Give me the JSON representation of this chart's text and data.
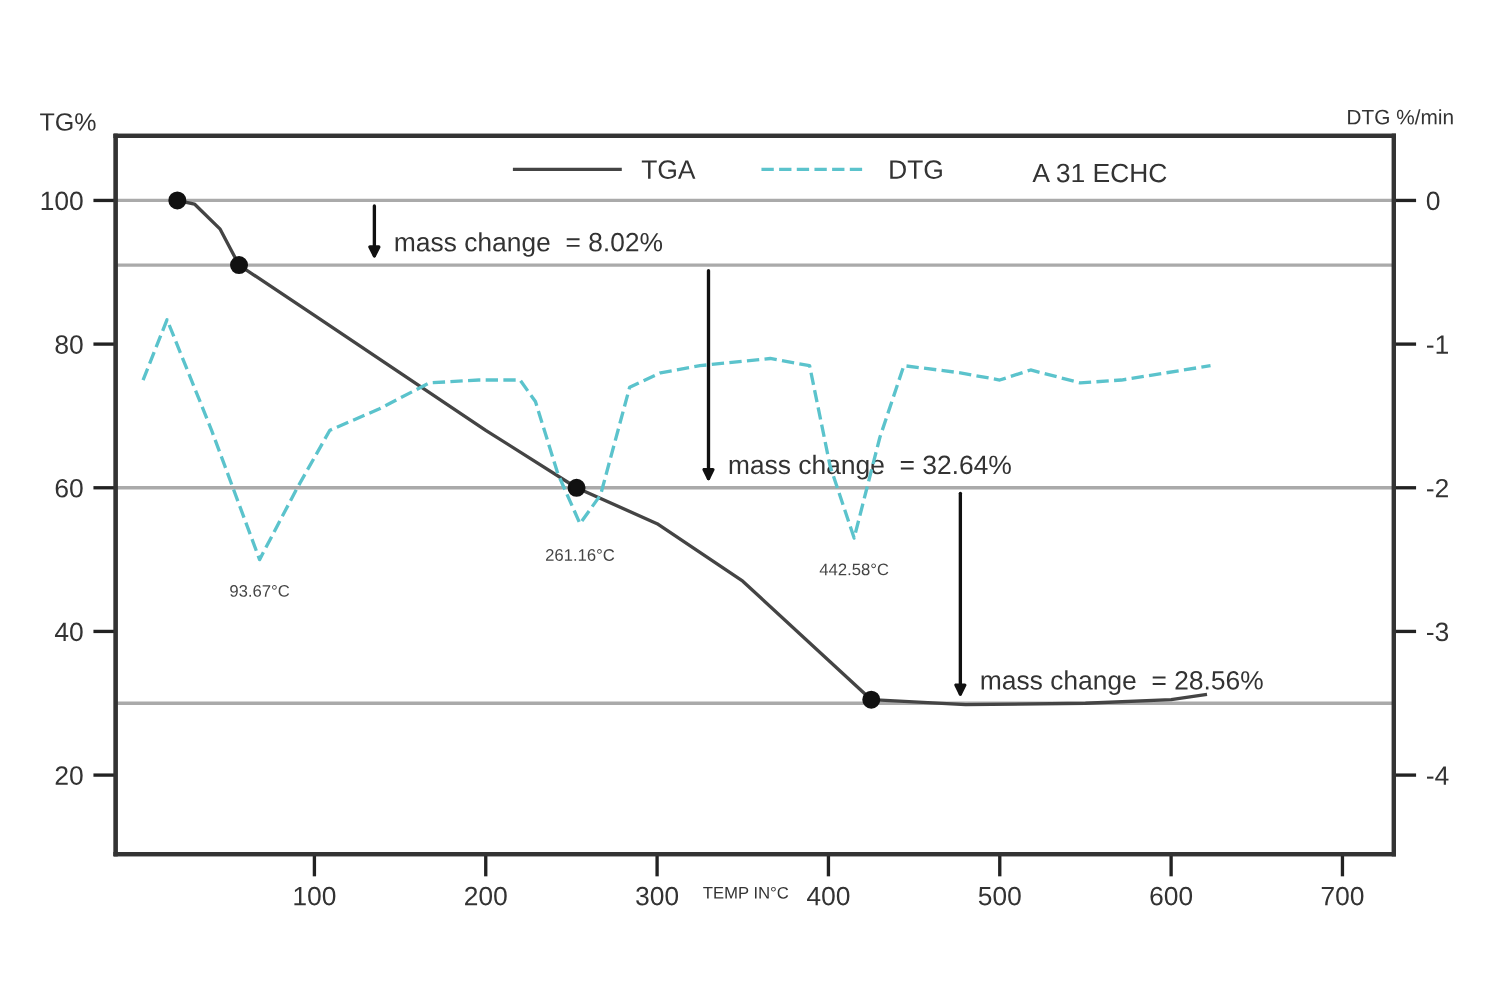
{
  "chart_data": {
    "type": "line",
    "title": "A 31 ECHC",
    "xlabel": "TEMP IN°C",
    "ylabel": "TG%",
    "y2label": "DTG %/min",
    "xlim": [
      -16,
      730
    ],
    "ylim": [
      9,
      109
    ],
    "y2lim": [
      -4.55,
      0.45
    ],
    "xticks": [
      100,
      200,
      300,
      400,
      500,
      600,
      700
    ],
    "yticks": [
      20,
      40,
      60,
      80,
      100
    ],
    "y2ticks": [
      0,
      -1,
      -2,
      -3,
      -4
    ],
    "grid": false,
    "legend": "top",
    "series": [
      {
        "name": "TGA",
        "color": "#444444",
        "line_style": "solid",
        "x": [
          20,
          30,
          45,
          56,
          100,
          150,
          200,
          253,
          300,
          350,
          400,
          425,
          480,
          550,
          600,
          620
        ],
        "values": [
          100,
          99.5,
          96,
          91,
          84,
          76,
          68,
          60,
          55,
          47,
          36,
          30.5,
          29.8,
          30,
          30.5,
          31.2
        ]
      },
      {
        "name": "DTG",
        "type": "line",
        "axis": "y2",
        "color": "#5bc3cc",
        "line_style": "dashed",
        "x": [
          0,
          14,
          40,
          68,
          90,
          109,
          138,
          167,
          196,
          220,
          229,
          242,
          255,
          267,
          284,
          302,
          325,
          366,
          389,
          401,
          415,
          430,
          444,
          477,
          500,
          518,
          547,
          571,
          623
        ],
        "values": [
          -1.25,
          -0.83,
          -1.6,
          -2.5,
          -2.0,
          -1.6,
          -1.45,
          -1.27,
          -1.25,
          -1.25,
          -1.4,
          -1.9,
          -2.25,
          -2.05,
          -1.3,
          -1.2,
          -1.15,
          -1.1,
          -1.15,
          -1.85,
          -2.35,
          -1.65,
          -1.15,
          -1.2,
          -1.25,
          -1.18,
          -1.27,
          -1.25,
          -1.15
        ]
      },
      {
        "type": "scatter",
        "color": "#111111",
        "marker": "circle",
        "x": [
          20,
          56,
          253,
          425
        ],
        "values": [
          100,
          91,
          60,
          30.5
        ]
      }
    ],
    "ref_lines": [
      {
        "axis": "y",
        "value": 100,
        "color": "#aaaaaa"
      },
      {
        "axis": "y",
        "value": 91,
        "color": "#aaaaaa"
      },
      {
        "axis": "y",
        "value": 60,
        "color": "#aaaaaa"
      },
      {
        "axis": "y",
        "value": 30,
        "color": "#aaaaaa"
      }
    ],
    "annotations": [
      {
        "text": "mass change  = 8.02%",
        "x": 135,
        "y": 91
      },
      {
        "text": "mass change  = 32.64%",
        "x": 330,
        "y": 60
      },
      {
        "text": "mass change  = 28.56%",
        "x": 477,
        "y": 30
      },
      {
        "text": "93.67°C",
        "x": 68,
        "y": 50
      },
      {
        "text": "261.16°C",
        "x": 255,
        "y": 55
      },
      {
        "text": "442.58°C",
        "x": 415,
        "y": 53
      }
    ]
  }
}
